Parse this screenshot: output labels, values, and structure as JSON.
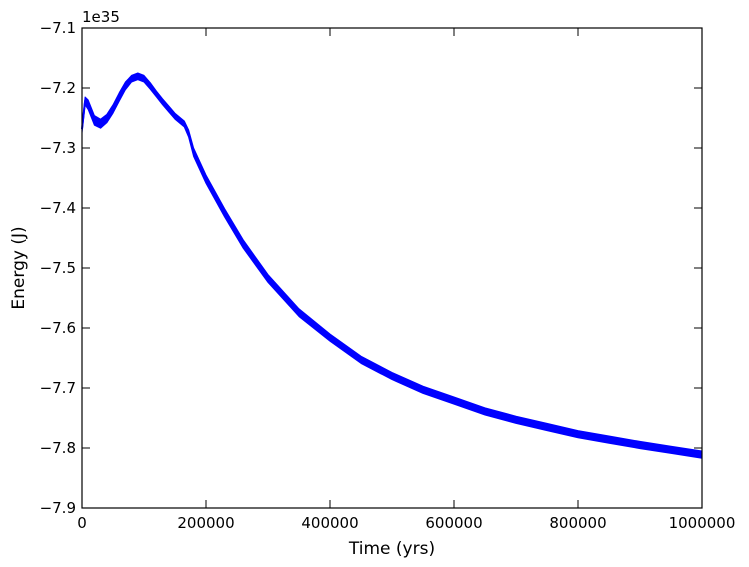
{
  "chart_data": {
    "type": "line",
    "xlabel": "Time (yrs)",
    "ylabel": "Energy (J)",
    "y_offset_label": "1e35",
    "xlim": [
      0,
      1000000
    ],
    "ylim": [
      -7.9,
      -7.1
    ],
    "x_ticks": [
      0,
      200000,
      400000,
      600000,
      800000,
      1000000
    ],
    "x_tick_labels": [
      "0",
      "200000",
      "400000",
      "600000",
      "800000",
      "1000000"
    ],
    "y_ticks": [
      -7.1,
      -7.2,
      -7.3,
      -7.4,
      -7.5,
      -7.6,
      -7.7,
      -7.8,
      -7.9
    ],
    "y_tick_labels": [
      "−7.1",
      "−7.2",
      "−7.3",
      "−7.4",
      "−7.5",
      "−7.6",
      "−7.7",
      "−7.8",
      "−7.9"
    ],
    "grid": false,
    "series": [
      {
        "color": "#0000ff",
        "x": [
          0,
          5000,
          10000,
          20000,
          30000,
          40000,
          50000,
          60000,
          70000,
          80000,
          90000,
          100000,
          110000,
          120000,
          130000,
          140000,
          150000,
          165000,
          172000,
          180000,
          200000,
          230000,
          260000,
          300000,
          350000,
          400000,
          450000,
          500000,
          550000,
          600000,
          650000,
          700000,
          750000,
          800000,
          850000,
          900000,
          950000,
          1000000
        ],
        "upper": [
          -7.262,
          -7.215,
          -7.22,
          -7.246,
          -7.252,
          -7.244,
          -7.228,
          -7.208,
          -7.19,
          -7.179,
          -7.175,
          -7.179,
          -7.191,
          -7.205,
          -7.218,
          -7.23,
          -7.242,
          -7.255,
          -7.27,
          -7.3,
          -7.345,
          -7.401,
          -7.453,
          -7.511,
          -7.568,
          -7.61,
          -7.647,
          -7.674,
          -7.697,
          -7.715,
          -7.733,
          -7.747,
          -7.759,
          -7.771,
          -7.78,
          -7.789,
          -7.797,
          -7.805
        ],
        "lower": [
          -7.275,
          -7.228,
          -7.236,
          -7.262,
          -7.267,
          -7.258,
          -7.242,
          -7.222,
          -7.203,
          -7.19,
          -7.186,
          -7.19,
          -7.202,
          -7.215,
          -7.228,
          -7.24,
          -7.252,
          -7.265,
          -7.282,
          -7.314,
          -7.359,
          -7.415,
          -7.467,
          -7.524,
          -7.581,
          -7.622,
          -7.659,
          -7.686,
          -7.709,
          -7.727,
          -7.745,
          -7.759,
          -7.771,
          -7.783,
          -7.792,
          -7.801,
          -7.809,
          -7.817
        ]
      }
    ]
  }
}
